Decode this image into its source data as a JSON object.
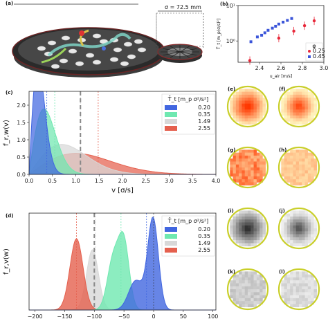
{
  "panel_a": {
    "letter": "(a)",
    "dimension_label": "σ = 72.5 mm"
  },
  "chart_data": [
    {
      "id": "b",
      "letter": "(b)",
      "type": "scatter",
      "xlabel": "u_air [m/s]",
      "ylabel": "T̄_t [m_p(σ/s)²]",
      "xlim": [
        2.2,
        3.0
      ],
      "xticks": [
        2.4,
        2.6,
        2.8,
        3.0
      ],
      "yscale": "log",
      "ylim": [
        0.25,
        10
      ],
      "yticks": [
        1,
        10
      ],
      "ytick_labels": [
        "10⁰",
        "10¹"
      ],
      "legend_title": "φ",
      "series": [
        {
          "name": "0.25",
          "color": "#e8283a",
          "x": [
            2.31,
            2.58,
            2.72,
            2.82,
            2.91
          ],
          "y": [
            0.28,
            1.2,
            1.9,
            2.7,
            3.7
          ]
        },
        {
          "name": "0.45",
          "color": "#3b55d9",
          "x": [
            2.32,
            2.38,
            2.42,
            2.45,
            2.48,
            2.52,
            2.55,
            2.58,
            2.62,
            2.66,
            2.7
          ],
          "y": [
            0.95,
            1.3,
            1.45,
            1.7,
            2.0,
            2.3,
            2.6,
            3.0,
            3.4,
            3.8,
            4.3
          ]
        }
      ]
    },
    {
      "id": "c",
      "letter": "(c)",
      "type": "area",
      "xlabel": "v [σ/s]",
      "ylabel": "f_r,w(v)",
      "xlim": [
        0,
        4
      ],
      "xticks": [
        0,
        0.5,
        1.0,
        1.5,
        2.0,
        2.5,
        3.0,
        3.5,
        4.0
      ],
      "xtick_labels": [
        "0.0",
        "0.5",
        "1.0",
        "1.5",
        "2.0",
        "2.5",
        "3.0",
        "3.5",
        "4.0"
      ],
      "ylim": [
        0,
        2.4
      ],
      "yticks": [
        0,
        0.5,
        1.0,
        1.5,
        2.0
      ],
      "ytick_labels": [
        "0.0",
        "0.5",
        "1.0",
        "1.5",
        "2.0"
      ],
      "legend_title": "T̄_t [m_p σ²/s²]",
      "series": [
        {
          "name": "0.20",
          "color": "#4166e0",
          "sigma": 0.19,
          "mean_line": 0.38
        },
        {
          "name": "0.35",
          "color": "#6fe8b0",
          "sigma": 0.32,
          "mean_line": 0.55
        },
        {
          "name": "1.49",
          "color": "#d8d8d8",
          "sigma": 0.7,
          "mean_line": 1.1
        },
        {
          "name": "2.55",
          "color": "#e5604e",
          "sigma": 1.0,
          "mean_line": 1.48
        }
      ]
    },
    {
      "id": "d",
      "letter": "(d)",
      "type": "area",
      "xlabel": "",
      "ylabel": "f_r,v(w)",
      "xlim": [
        -210,
        105
      ],
      "xticks": [
        -200,
        -150,
        -100,
        -50,
        0,
        50,
        100
      ],
      "xtick_labels": [
        "−200",
        "−150",
        "−100",
        "−50",
        "0",
        "50",
        "100"
      ],
      "legend_title": "T̄_t [m_p σ²/s²]",
      "series": [
        {
          "name": "0.20",
          "color": "#4166e0",
          "peaks": [
            [
              -1,
              9,
              1.0
            ],
            [
              -30,
              12,
              0.32
            ]
          ],
          "mean_line": -12
        },
        {
          "name": "0.35",
          "color": "#6fe8b0",
          "peaks": [
            [
              -50,
              9,
              0.72
            ],
            [
              -68,
              10,
              0.55
            ]
          ],
          "mean_line": -55
        },
        {
          "name": "1.49",
          "color": "#d8d8d8",
          "peaks": [
            [
              -103,
              10,
              0.66
            ]
          ],
          "mean_line": -98
        },
        {
          "name": "2.55",
          "color": "#e5604e",
          "peaks": [
            [
              -130,
              11,
              0.78
            ]
          ],
          "mean_line": -130
        }
      ]
    }
  ],
  "heatmaps": {
    "row1": [
      {
        "letter": "(e)"
      },
      {
        "letter": "(f)"
      }
    ],
    "row2": [
      {
        "letter": "(g)"
      },
      {
        "letter": "(h)"
      }
    ],
    "row3": [
      {
        "letter": "(i)"
      },
      {
        "letter": "(j)"
      }
    ],
    "row4": [
      {
        "letter": "(k)"
      },
      {
        "letter": "(l)"
      }
    ]
  }
}
